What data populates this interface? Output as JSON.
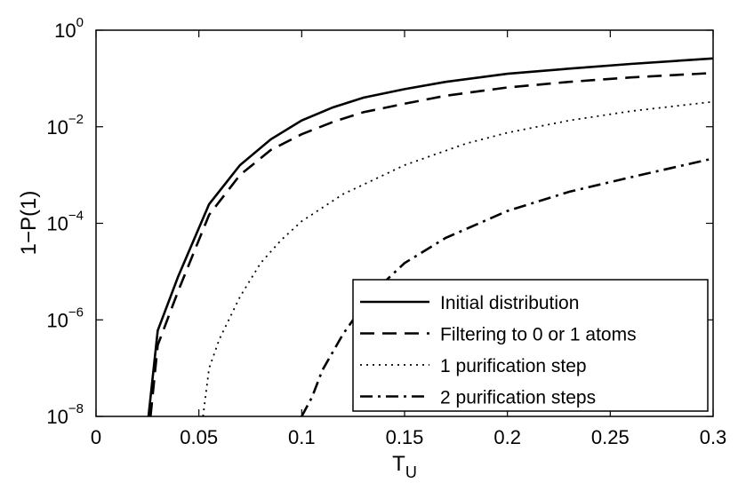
{
  "chart_data": {
    "type": "line",
    "title": "",
    "xlabel": "T",
    "xlabel_subscript": "U",
    "ylabel": "1−P(1)",
    "xlim": [
      0,
      0.3
    ],
    "ylim": [
      1e-08,
      1
    ],
    "yscale": "log",
    "grid": false,
    "legend_position": "bottom-right",
    "x_ticks": [
      {
        "value": 0,
        "label": "0"
      },
      {
        "value": 0.05,
        "label": "0.05"
      },
      {
        "value": 0.1,
        "label": "0.1"
      },
      {
        "value": 0.15,
        "label": "0.15"
      },
      {
        "value": 0.2,
        "label": "0.2"
      },
      {
        "value": 0.25,
        "label": "0.25"
      },
      {
        "value": 0.3,
        "label": "0.3"
      }
    ],
    "y_ticks": [
      {
        "value": 1e-08,
        "base": "10",
        "exp": "−8"
      },
      {
        "value": 1e-06,
        "base": "10",
        "exp": "−6"
      },
      {
        "value": 0.0001,
        "base": "10",
        "exp": "−4"
      },
      {
        "value": 0.01,
        "base": "10",
        "exp": "−2"
      },
      {
        "value": 1,
        "base": "10",
        "exp": "0"
      }
    ],
    "series": [
      {
        "name": "Initial distribution",
        "dash": "solid",
        "points": [
          [
            0.0255,
            1e-08
          ],
          [
            0.03,
            6e-07
          ],
          [
            0.04,
            8e-06
          ],
          [
            0.055,
            0.00025
          ],
          [
            0.07,
            0.0016
          ],
          [
            0.085,
            0.0055
          ],
          [
            0.1,
            0.0135
          ],
          [
            0.115,
            0.025
          ],
          [
            0.13,
            0.04
          ],
          [
            0.15,
            0.06
          ],
          [
            0.17,
            0.085
          ],
          [
            0.2,
            0.125
          ],
          [
            0.23,
            0.16
          ],
          [
            0.26,
            0.2
          ],
          [
            0.3,
            0.26
          ]
        ]
      },
      {
        "name": "Filtering to 0 or 1 atoms",
        "dash": "dashed",
        "points": [
          [
            0.0265,
            1e-08
          ],
          [
            0.03,
            3e-07
          ],
          [
            0.04,
            4e-06
          ],
          [
            0.055,
            0.00015
          ],
          [
            0.07,
            0.001
          ],
          [
            0.085,
            0.0033
          ],
          [
            0.1,
            0.007
          ],
          [
            0.115,
            0.0125
          ],
          [
            0.13,
            0.02
          ],
          [
            0.15,
            0.03
          ],
          [
            0.17,
            0.044
          ],
          [
            0.2,
            0.065
          ],
          [
            0.23,
            0.085
          ],
          [
            0.26,
            0.105
          ],
          [
            0.3,
            0.13
          ]
        ]
      },
      {
        "name": "1 purification step",
        "dash": "dotted",
        "points": [
          [
            0.052,
            1e-08
          ],
          [
            0.055,
            1e-07
          ],
          [
            0.06,
            4e-07
          ],
          [
            0.07,
            3e-06
          ],
          [
            0.08,
            1.5e-05
          ],
          [
            0.09,
            4.5e-05
          ],
          [
            0.1,
            0.00011
          ],
          [
            0.12,
            0.0004
          ],
          [
            0.15,
            0.0016
          ],
          [
            0.18,
            0.0045
          ],
          [
            0.2,
            0.0075
          ],
          [
            0.23,
            0.0135
          ],
          [
            0.26,
            0.021
          ],
          [
            0.3,
            0.033
          ]
        ]
      },
      {
        "name": "2 purification steps",
        "dash": "dashdot",
        "points": [
          [
            0.1,
            1e-08
          ],
          [
            0.105,
            2.5e-08
          ],
          [
            0.11,
            9e-08
          ],
          [
            0.12,
            5e-07
          ],
          [
            0.13,
            2e-06
          ],
          [
            0.14,
            6e-06
          ],
          [
            0.15,
            1.5e-05
          ],
          [
            0.17,
            5e-05
          ],
          [
            0.2,
            0.00018
          ],
          [
            0.23,
            0.00045
          ],
          [
            0.26,
            0.0009
          ],
          [
            0.3,
            0.0022
          ]
        ]
      }
    ]
  }
}
